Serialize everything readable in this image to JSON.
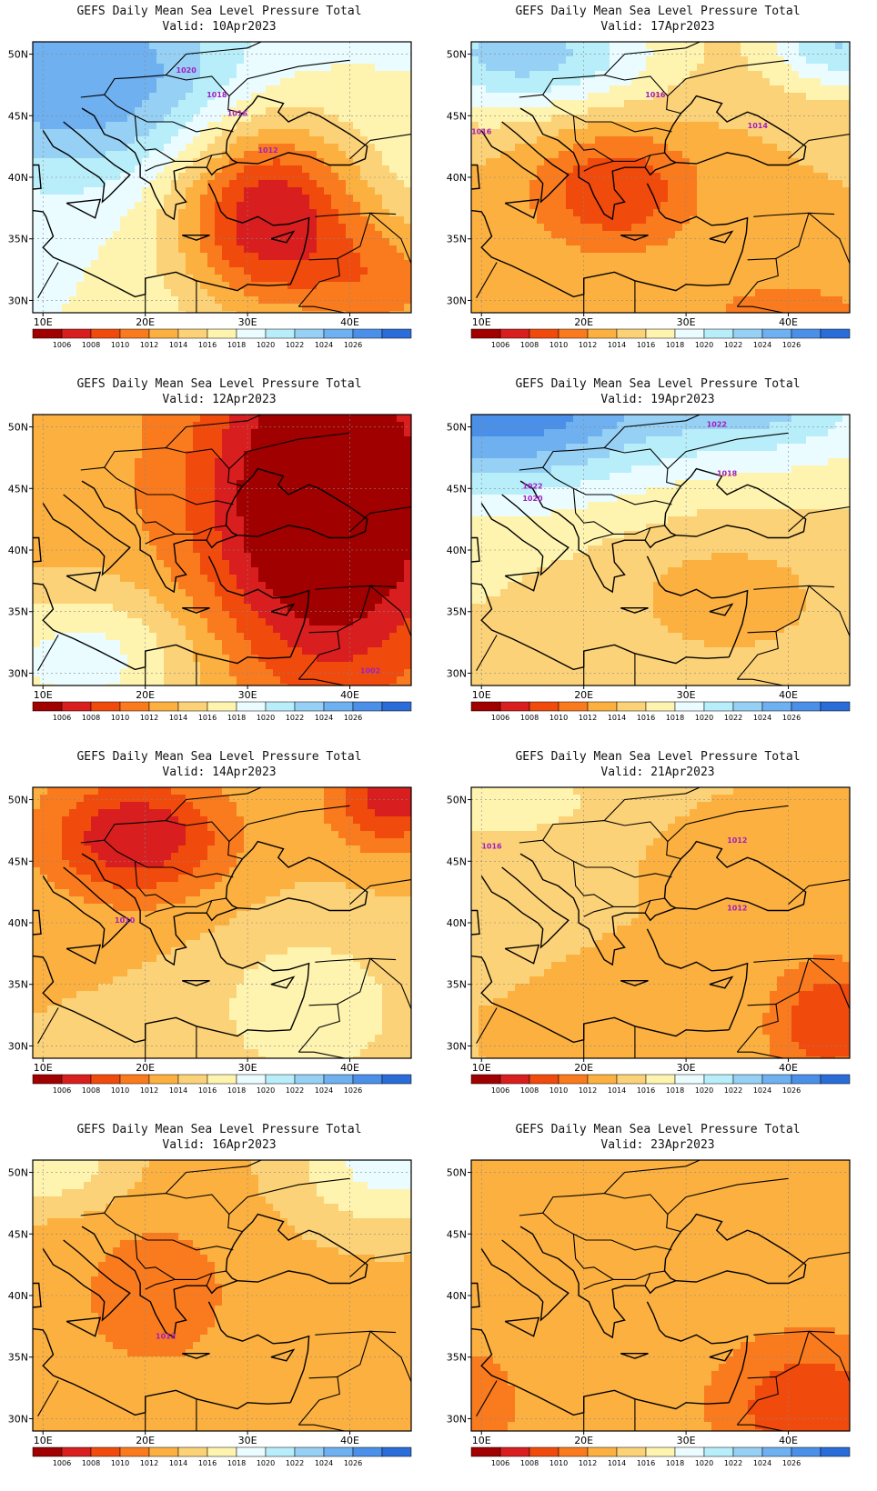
{
  "figure": {
    "extent": {
      "lon_min": 9,
      "lon_max": 46,
      "lat_min": 29,
      "lat_max": 51
    },
    "lon_ticks": [
      {
        "v": 10,
        "label": "10E"
      },
      {
        "v": 20,
        "label": "20E"
      },
      {
        "v": 30,
        "label": "30E"
      },
      {
        "v": 40,
        "label": "40E"
      }
    ],
    "lat_ticks": [
      {
        "v": 50,
        "label": "50N"
      },
      {
        "v": 45,
        "label": "45N"
      },
      {
        "v": 40,
        "label": "40N"
      },
      {
        "v": 35,
        "label": "35N"
      },
      {
        "v": 30,
        "label": "30N"
      }
    ],
    "colorbar": {
      "levels": [
        "1006",
        "1008",
        "1010",
        "1012",
        "1014",
        "1016",
        "1018",
        "1020",
        "1022",
        "1024",
        "1026"
      ],
      "colors": [
        "#a00000",
        "#d81e1e",
        "#f04a0c",
        "#fa7a1e",
        "#fcb040",
        "#fcd278",
        "#fef4b0",
        "#eafcff",
        "#b8eefa",
        "#96d0f4",
        "#6eb0f0",
        "#4a90e8",
        "#2a6cd8"
      ]
    },
    "contour_color": "#a020c0"
  },
  "panels": [
    {
      "title": "GEFS Daily Mean Sea Level Pressure Total",
      "valid": "Valid: 10Apr2023",
      "base": 1018,
      "centers": [
        {
          "lon": 32,
          "lat": 37,
          "amp": -12,
          "rx": 9,
          "ry": 8
        },
        {
          "lon": 14,
          "lat": 48,
          "amp": 8,
          "rx": 16,
          "ry": 8
        },
        {
          "lon": 44,
          "lat": 31,
          "amp": -6,
          "rx": 8,
          "ry": 6
        }
      ],
      "labels": [
        {
          "text": "1020",
          "lon": 24,
          "lat": 48.5
        },
        {
          "text": "1018",
          "lon": 27,
          "lat": 46.5
        },
        {
          "text": "1016",
          "lon": 29,
          "lat": 45
        },
        {
          "text": "1012",
          "lon": 32,
          "lat": 42
        }
      ]
    },
    {
      "title": "GEFS Daily Mean Sea Level Pressure Total",
      "valid": "Valid: 17Apr2023",
      "base": 1014,
      "centers": [
        {
          "lon": 23,
          "lat": 39,
          "amp": -6,
          "rx": 8,
          "ry": 5
        },
        {
          "lon": 14,
          "lat": 50,
          "amp": 9,
          "rx": 14,
          "ry": 5
        },
        {
          "lon": 45,
          "lat": 51,
          "amp": 8,
          "rx": 7,
          "ry": 4
        },
        {
          "lon": 40,
          "lat": 29,
          "amp": -3,
          "rx": 10,
          "ry": 3
        }
      ],
      "labels": [
        {
          "text": "1016",
          "lon": 27,
          "lat": 46.5
        },
        {
          "text": "1014",
          "lon": 37,
          "lat": 44
        },
        {
          "text": "1016",
          "lon": 10,
          "lat": 43.5
        }
      ]
    },
    {
      "title": "GEFS Daily Mean Sea Level Pressure Total",
      "valid": "Valid: 12Apr2023",
      "base": 1013,
      "centers": [
        {
          "lon": 38,
          "lat": 44,
          "amp": -12,
          "rx": 12,
          "ry": 14
        },
        {
          "lon": 14,
          "lat": 31,
          "amp": 6,
          "rx": 12,
          "ry": 6
        }
      ],
      "labels": [
        {
          "text": "1002",
          "lon": 42,
          "lat": 30
        }
      ]
    },
    {
      "title": "GEFS Daily Mean Sea Level Pressure Total",
      "valid": "Valid: 19Apr2023",
      "base": 1016,
      "centers": [
        {
          "lon": 12,
          "lat": 52,
          "amp": 12,
          "rx": 16,
          "ry": 7
        },
        {
          "lon": 38,
          "lat": 52,
          "amp": 6,
          "rx": 12,
          "ry": 5
        },
        {
          "lon": 34,
          "lat": 36,
          "amp": -3,
          "rx": 12,
          "ry": 6
        }
      ],
      "labels": [
        {
          "text": "1022",
          "lon": 33,
          "lat": 50
        },
        {
          "text": "1018",
          "lon": 34,
          "lat": 46
        },
        {
          "text": "1022",
          "lon": 15,
          "lat": 45
        },
        {
          "text": "1020",
          "lon": 15,
          "lat": 44
        }
      ]
    },
    {
      "title": "GEFS Daily Mean Sea Level Pressure Total",
      "valid": "Valid: 14Apr2023",
      "base": 1014,
      "centers": [
        {
          "lon": 19,
          "lat": 47,
          "amp": -8,
          "rx": 9,
          "ry": 5
        },
        {
          "lon": 44,
          "lat": 50,
          "amp": -7,
          "rx": 6,
          "ry": 4
        },
        {
          "lon": 36,
          "lat": 33,
          "amp": 4,
          "rx": 9,
          "ry": 6
        }
      ],
      "labels": [
        {
          "text": "1010",
          "lon": 18,
          "lat": 40
        }
      ]
    },
    {
      "title": "GEFS Daily Mean Sea Level Pressure Total",
      "valid": "Valid: 21Apr2023",
      "base": 1014,
      "centers": [
        {
          "lon": 44,
          "lat": 32,
          "amp": -6,
          "rx": 6,
          "ry": 5
        },
        {
          "lon": 36,
          "lat": 46,
          "amp": -2,
          "rx": 5,
          "ry": 2
        },
        {
          "lon": 12,
          "lat": 50,
          "amp": 4,
          "rx": 9,
          "ry": 3
        }
      ],
      "labels": [
        {
          "text": "1012",
          "lon": 35,
          "lat": 46.5
        },
        {
          "text": "1012",
          "lon": 35,
          "lat": 41
        },
        {
          "text": "1016",
          "lon": 11,
          "lat": 46
        }
      ]
    },
    {
      "title": "GEFS Daily Mean Sea Level Pressure Total",
      "valid": "Valid: 16Apr2023",
      "base": 1013,
      "centers": [
        {
          "lon": 21,
          "lat": 40,
          "amp": -3,
          "rx": 6,
          "ry": 5
        },
        {
          "lon": 10,
          "lat": 51,
          "amp": 5,
          "rx": 8,
          "ry": 4
        },
        {
          "lon": 44,
          "lat": 51,
          "amp": 6,
          "rx": 10,
          "ry": 6
        }
      ],
      "labels": [
        {
          "text": "1012",
          "lon": 22,
          "lat": 36.5
        }
      ]
    },
    {
      "title": "GEFS Daily Mean Sea Level Pressure Total",
      "valid": "Valid: 23Apr2023",
      "base": 1013,
      "centers": [
        {
          "lon": 42,
          "lat": 31,
          "amp": -5,
          "rx": 8,
          "ry": 5
        },
        {
          "lon": 9,
          "lat": 31,
          "amp": -3,
          "rx": 4,
          "ry": 4
        }
      ],
      "labels": []
    }
  ]
}
